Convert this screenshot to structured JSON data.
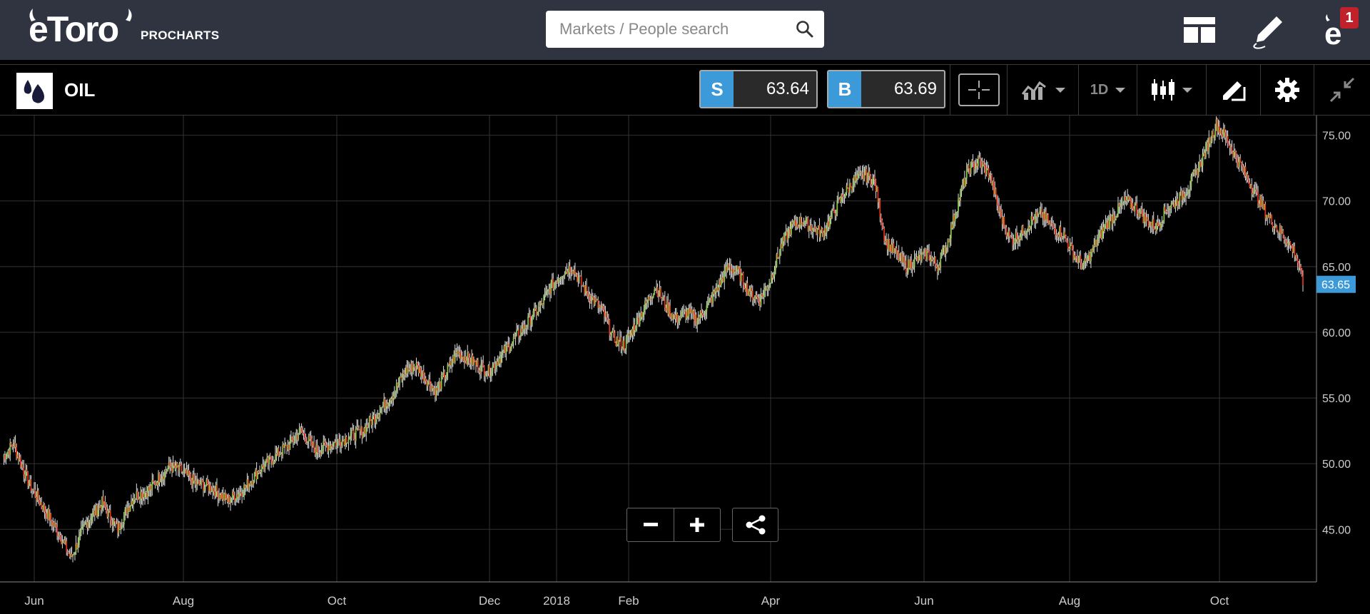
{
  "header": {
    "logo_text": "eToro",
    "logo_sub": "PROCHARTS",
    "search_placeholder": "Markets / People search",
    "notifications_count": "1",
    "icons": [
      "layout-icon",
      "pen-icon",
      "profile-icon"
    ]
  },
  "toolbar": {
    "instrument": "OIL",
    "sell_label": "S",
    "sell_price": "63.64",
    "buy_label": "B",
    "buy_price": "63.69",
    "timeframe": "1D",
    "icons": [
      "crosshair-icon",
      "indicators-icon",
      "candles-icon",
      "drawing-icon",
      "gear-icon",
      "collapse-icon"
    ]
  },
  "zoom": {
    "minus": "−",
    "plus": "+"
  },
  "colors": {
    "up": "#8bc34a",
    "down": "#d9321e",
    "accent": "#3d9ad9",
    "header_bg": "#2f3440"
  },
  "chart_data": {
    "type": "candlestick",
    "instrument": "OIL",
    "interval": "1D",
    "current_price": 63.65,
    "current_price_label": "63.65",
    "ylim": [
      41,
      76.5
    ],
    "y_ticks": [
      "45.00",
      "50.00",
      "55.00",
      "60.00",
      "65.00",
      "70.00",
      "75.00"
    ],
    "x_ticks": [
      "Jun",
      "Aug",
      "Oct",
      "Dec",
      "2018",
      "Feb",
      "Apr",
      "Jun",
      "Aug",
      "Oct"
    ],
    "grid": true,
    "trend_close": [
      [
        0,
        50.5
      ],
      [
        10,
        51.5
      ],
      [
        25,
        48.5
      ],
      [
        40,
        46.5
      ],
      [
        55,
        44.5
      ],
      [
        65,
        42.8
      ],
      [
        80,
        45.5
      ],
      [
        95,
        47.0
      ],
      [
        110,
        45.0
      ],
      [
        125,
        47.5
      ],
      [
        140,
        48.0
      ],
      [
        150,
        49.0
      ],
      [
        160,
        49.8
      ],
      [
        170,
        49.5
      ],
      [
        185,
        48.5
      ],
      [
        200,
        48.2
      ],
      [
        215,
        47.2
      ],
      [
        230,
        48.0
      ],
      [
        245,
        49.5
      ],
      [
        260,
        50.5
      ],
      [
        275,
        51.5
      ],
      [
        285,
        52.5
      ],
      [
        300,
        51.0
      ],
      [
        315,
        51.5
      ],
      [
        330,
        52.0
      ],
      [
        345,
        52.5
      ],
      [
        355,
        53.5
      ],
      [
        365,
        54.5
      ],
      [
        375,
        55.5
      ],
      [
        385,
        57.0
      ],
      [
        395,
        57.5
      ],
      [
        405,
        56.5
      ],
      [
        415,
        55.5
      ],
      [
        425,
        57.0
      ],
      [
        435,
        58.5
      ],
      [
        445,
        58.0
      ],
      [
        455,
        57.5
      ],
      [
        465,
        57.0
      ],
      [
        475,
        58.0
      ],
      [
        485,
        59.0
      ],
      [
        495,
        60.0
      ],
      [
        505,
        61.0
      ],
      [
        515,
        62.0
      ],
      [
        525,
        63.5
      ],
      [
        535,
        64.5
      ],
      [
        545,
        65.0
      ],
      [
        555,
        63.5
      ],
      [
        565,
        62.5
      ],
      [
        575,
        61.5
      ],
      [
        585,
        59.5
      ],
      [
        595,
        59.0
      ],
      [
        605,
        60.5
      ],
      [
        615,
        62.0
      ],
      [
        625,
        63.5
      ],
      [
        635,
        62.0
      ],
      [
        645,
        61.0
      ],
      [
        655,
        61.5
      ],
      [
        665,
        61.0
      ],
      [
        675,
        62.0
      ],
      [
        685,
        63.5
      ],
      [
        695,
        65.0
      ],
      [
        705,
        64.5
      ],
      [
        715,
        63.0
      ],
      [
        725,
        62.5
      ],
      [
        735,
        64.0
      ],
      [
        745,
        66.5
      ],
      [
        755,
        68.0
      ],
      [
        765,
        68.5
      ],
      [
        775,
        68.0
      ],
      [
        785,
        67.5
      ],
      [
        795,
        69.0
      ],
      [
        805,
        70.5
      ],
      [
        815,
        71.5
      ],
      [
        825,
        72.0
      ],
      [
        835,
        71.5
      ],
      [
        845,
        67.0
      ],
      [
        855,
        66.0
      ],
      [
        865,
        65.0
      ],
      [
        875,
        65.5
      ],
      [
        885,
        66.0
      ],
      [
        895,
        65.0
      ],
      [
        905,
        67.0
      ],
      [
        915,
        70.0
      ],
      [
        925,
        72.5
      ],
      [
        935,
        73.0
      ],
      [
        945,
        72.0
      ],
      [
        955,
        69.0
      ],
      [
        965,
        67.0
      ],
      [
        975,
        67.5
      ],
      [
        985,
        68.5
      ],
      [
        995,
        69.0
      ],
      [
        1005,
        68.0
      ],
      [
        1015,
        67.5
      ],
      [
        1025,
        66.0
      ],
      [
        1035,
        65.0
      ],
      [
        1045,
        66.5
      ],
      [
        1055,
        68.0
      ],
      [
        1065,
        69.0
      ],
      [
        1075,
        70.0
      ],
      [
        1085,
        69.5
      ],
      [
        1095,
        68.5
      ],
      [
        1105,
        68.0
      ],
      [
        1115,
        69.5
      ],
      [
        1125,
        70.0
      ],
      [
        1135,
        71.0
      ],
      [
        1145,
        72.5
      ],
      [
        1155,
        74.5
      ],
      [
        1162,
        75.8
      ],
      [
        1170,
        75.0
      ],
      [
        1180,
        73.5
      ],
      [
        1190,
        72.0
      ],
      [
        1200,
        70.5
      ],
      [
        1210,
        69.0
      ],
      [
        1220,
        68.0
      ],
      [
        1230,
        67.0
      ],
      [
        1238,
        66.0
      ],
      [
        1245,
        63.7
      ]
    ]
  }
}
